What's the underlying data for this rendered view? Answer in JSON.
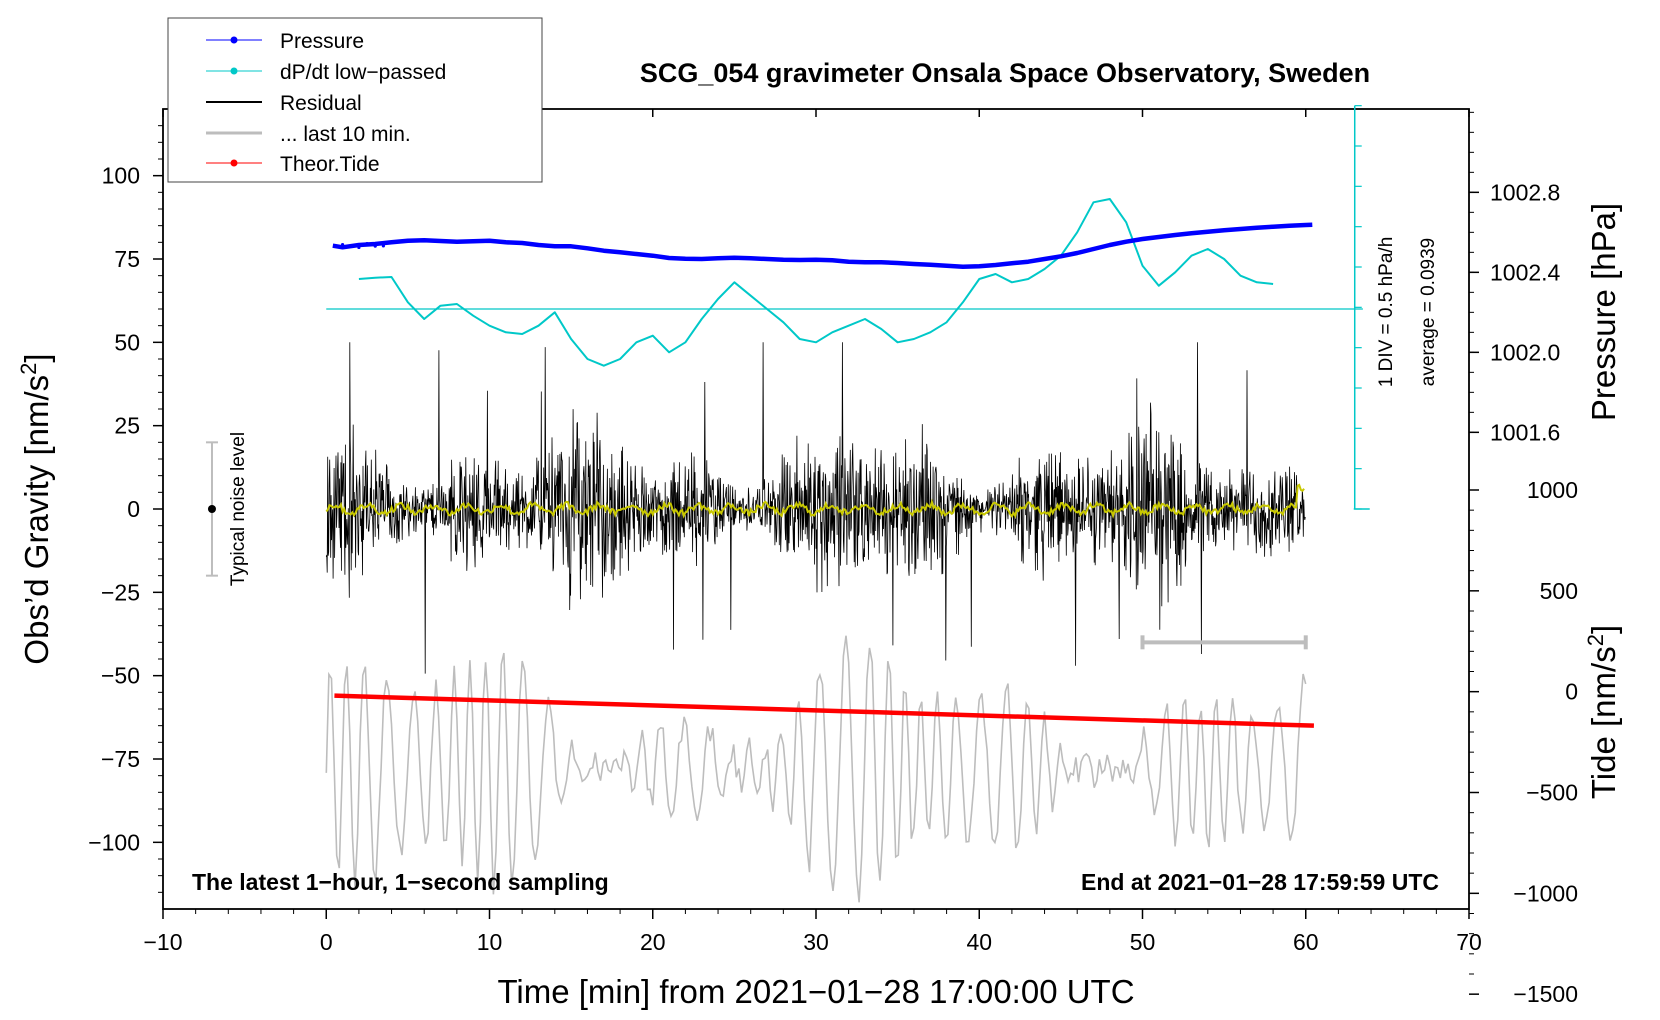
{
  "chart_data": {
    "type": "line",
    "title": "SCG_054 gravimeter Onsala Space Observatory, Sweden",
    "xlabel": "Time [min] from 2021−01−28 17:00:00 UTC",
    "ylabel_left_main": "Obs’d Gravity [nm/s",
    "ylabel_left_sup": "2",
    "ylabel_left_end": "]",
    "ylabel_right_pressure": "Pressure [hPa]",
    "ylabel_right_tide_main": "Tide [nm/s",
    "ylabel_right_tide_sup": "2",
    "ylabel_right_tide_end": "]",
    "xlim": [
      -10,
      70
    ],
    "ylim_gravity": [
      -120,
      120
    ],
    "pressure_axis": {
      "ticks": [
        1002.8,
        1002.4,
        1002.0,
        1001.6
      ],
      "tick_labels": [
        "1002.8",
        "1002.4",
        "1002.0",
        "1001.6"
      ],
      "gravity_equiv": [
        95,
        71,
        47,
        23
      ]
    },
    "tide_axis": {
      "ticks": [
        1000,
        500,
        0,
        -500,
        -1000,
        -1500
      ],
      "tick_labels": [
        "1000",
        "500",
        "0",
        "−500",
        "−1000",
        "−1500"
      ]
    },
    "x_ticks": [
      -10,
      0,
      10,
      20,
      30,
      40,
      50,
      60,
      70
    ],
    "x_tick_labels": [
      "−10",
      "0",
      "10",
      "20",
      "30",
      "40",
      "50",
      "60",
      "70"
    ],
    "y_ticks": [
      100,
      75,
      50,
      25,
      0,
      -25,
      -50,
      -75,
      -100
    ],
    "y_tick_labels": [
      "100",
      "75",
      "50",
      "25",
      "0",
      "−25",
      "−50",
      "−75",
      "−100"
    ],
    "legend": [
      {
        "label": "Pressure",
        "color": "#0000ff",
        "marker": true
      },
      {
        "label": "dP/dt low−passed",
        "color": "#00c8c8",
        "marker": true
      },
      {
        "label": "Residual",
        "color": "#000000",
        "marker": false
      },
      {
        "label": "... last 10 min.",
        "color": "#bdbdbd",
        "marker": false
      },
      {
        "label": "Theor.Tide",
        "color": "#ff0000",
        "marker": true
      }
    ],
    "annotations": {
      "left_note": "The latest 1−hour, 1−second sampling",
      "right_note": "End at 2021−01−28 17:59:59 UTC",
      "noise_label": "Typical noise level",
      "dpdt_scale": "1 DIV = 0.5 hPa/h",
      "dpdt_average": "average = 0.0939"
    },
    "noise_bar": {
      "x": -7,
      "y_low": -20,
      "y_high": 20,
      "y_center": 0
    },
    "dpdt_baseline_y": 60,
    "dpdt_scale_axis": {
      "x": 63,
      "y_top": 121,
      "y_bottom": 0,
      "divisions": 10
    },
    "last10_bar": {
      "x0": 50,
      "x1": 60,
      "y": -40
    },
    "series": [
      {
        "name": "Pressure",
        "color": "#0000ff",
        "units": "gravity-equivalent",
        "points": [
          [
            0.4,
            79
          ],
          [
            1,
            78.5
          ],
          [
            2,
            79.2
          ],
          [
            3,
            79.5
          ],
          [
            4,
            80
          ],
          [
            5,
            80.5
          ],
          [
            6,
            80.6
          ],
          [
            7,
            80.4
          ],
          [
            8,
            80.2
          ],
          [
            9,
            80.3
          ],
          [
            10,
            80.5
          ],
          [
            11,
            80
          ],
          [
            12,
            79.8
          ],
          [
            13,
            79.2
          ],
          [
            14,
            78.8
          ],
          [
            15,
            78.8
          ],
          [
            16,
            78.2
          ],
          [
            17,
            77.5
          ],
          [
            18,
            77
          ],
          [
            19,
            76.5
          ],
          [
            20,
            76
          ],
          [
            21,
            75.3
          ],
          [
            22,
            75.1
          ],
          [
            23,
            75
          ],
          [
            24,
            75.2
          ],
          [
            25,
            75.4
          ],
          [
            26,
            75.2
          ],
          [
            27,
            75
          ],
          [
            28,
            74.8
          ],
          [
            29,
            74.7
          ],
          [
            30,
            74.8
          ],
          [
            31,
            74.6
          ],
          [
            32,
            74.2
          ],
          [
            33,
            74
          ],
          [
            34,
            74
          ],
          [
            35,
            73.8
          ],
          [
            36,
            73.5
          ],
          [
            37,
            73.3
          ],
          [
            38,
            73
          ],
          [
            39,
            72.7
          ],
          [
            40,
            72.8
          ],
          [
            41,
            73.2
          ],
          [
            42,
            73.7
          ],
          [
            43,
            74.2
          ],
          [
            44,
            75
          ],
          [
            45,
            75.8
          ],
          [
            46,
            76.8
          ],
          [
            47,
            78
          ],
          [
            48,
            79.2
          ],
          [
            49,
            80.2
          ],
          [
            50,
            81
          ],
          [
            51,
            81.6
          ],
          [
            52,
            82.2
          ],
          [
            53,
            82.7
          ],
          [
            54,
            83.2
          ],
          [
            55,
            83.6
          ],
          [
            56,
            84
          ],
          [
            57,
            84.4
          ],
          [
            58,
            84.7
          ],
          [
            59,
            85
          ],
          [
            60,
            85.2
          ],
          [
            60.4,
            85.3
          ]
        ]
      },
      {
        "name": "dP/dt low−passed",
        "color": "#00c8c8",
        "units": "gravity-equivalent",
        "points": [
          [
            2,
            69
          ],
          [
            3,
            69.4
          ],
          [
            4,
            69.6
          ],
          [
            5,
            62
          ],
          [
            6,
            57
          ],
          [
            7,
            61
          ],
          [
            8,
            61.5
          ],
          [
            9,
            58
          ],
          [
            10,
            55
          ],
          [
            11,
            53
          ],
          [
            12,
            52.5
          ],
          [
            13,
            55
          ],
          [
            14,
            59
          ],
          [
            15,
            51
          ],
          [
            16,
            45
          ],
          [
            17,
            43
          ],
          [
            18,
            45
          ],
          [
            19,
            50
          ],
          [
            20,
            52
          ],
          [
            21,
            47
          ],
          [
            22,
            50
          ],
          [
            23,
            57
          ],
          [
            24,
            63
          ],
          [
            25,
            68
          ],
          [
            26,
            64
          ],
          [
            27,
            60
          ],
          [
            28,
            56
          ],
          [
            29,
            51
          ],
          [
            30,
            50
          ],
          [
            31,
            53
          ],
          [
            32,
            55
          ],
          [
            33,
            57
          ],
          [
            34,
            54
          ],
          [
            35,
            50
          ],
          [
            36,
            51
          ],
          [
            37,
            53
          ],
          [
            38,
            56
          ],
          [
            39,
            62
          ],
          [
            40,
            69
          ],
          [
            41,
            70.5
          ],
          [
            42,
            68
          ],
          [
            43,
            69
          ],
          [
            44,
            72
          ],
          [
            45,
            76
          ],
          [
            46,
            83
          ],
          [
            47,
            92
          ],
          [
            48,
            93
          ],
          [
            49,
            86
          ],
          [
            50,
            73
          ],
          [
            51,
            67
          ],
          [
            52,
            71
          ],
          [
            53,
            76
          ],
          [
            54,
            78
          ],
          [
            55,
            75
          ],
          [
            56,
            70
          ],
          [
            57,
            68
          ],
          [
            58,
            67.5
          ]
        ]
      },
      {
        "name": "Theor.Tide",
        "color": "#ff0000",
        "units": "gravity-equivalent",
        "points": [
          [
            0.5,
            -56
          ],
          [
            60.5,
            -65
          ]
        ]
      },
      {
        "name": "Residual",
        "color": "#000000",
        "units": "nm/s2",
        "x_range": [
          0,
          60
        ],
        "amplitude_min": -55,
        "amplitude_max": 50
      },
      {
        "name": "Residual low−passed",
        "color": "#c8c800",
        "units": "nm/s2",
        "x_range": [
          0,
          60
        ],
        "approx_level": 0
      },
      {
        "name": "... last 10 min.",
        "color": "#bdbdbd",
        "units": "nm/s2, offset",
        "x_range": [
          0,
          60
        ],
        "center": -78,
        "amplitude_min": -118,
        "amplitude_max": -38
      }
    ]
  }
}
